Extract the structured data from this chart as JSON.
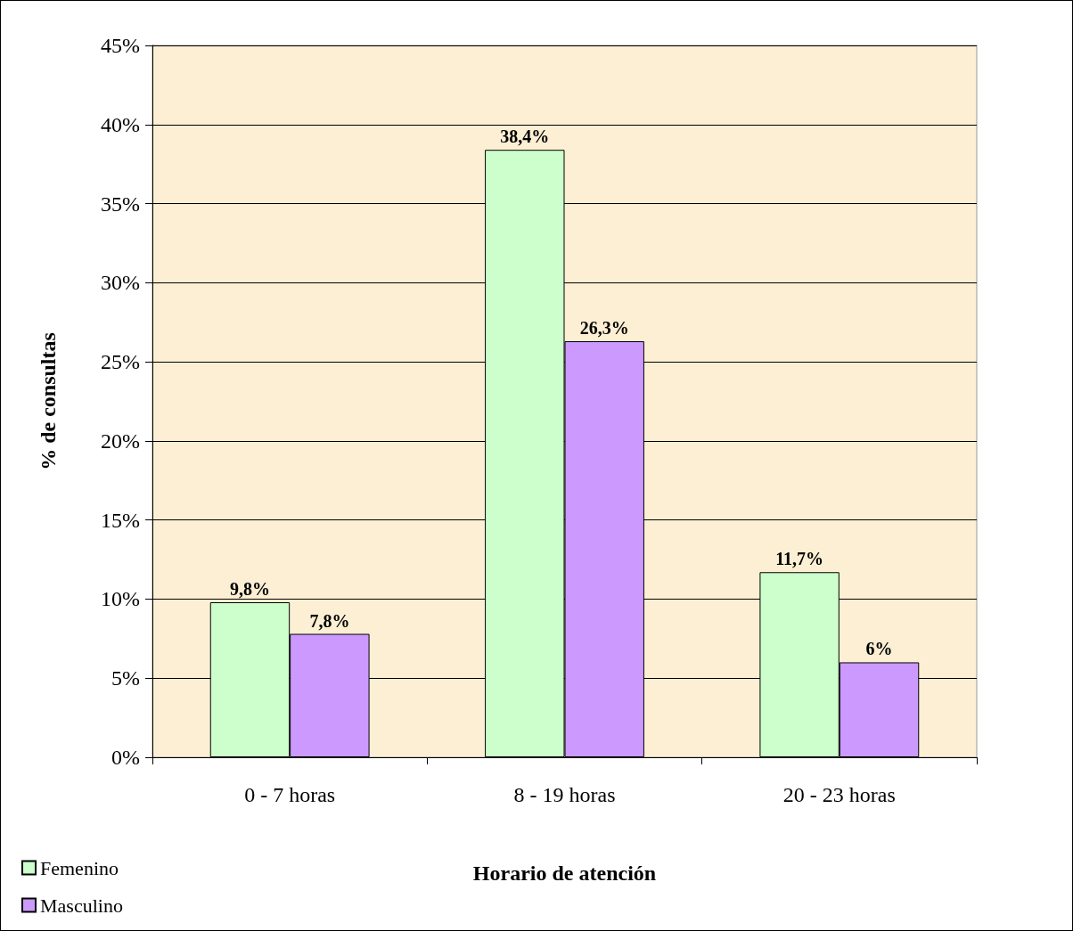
{
  "chart_data": {
    "type": "bar",
    "xlabel": "Horario de atención",
    "ylabel": "% de consultas",
    "categories": [
      "0 - 7 horas",
      "8 - 19 horas",
      "20 - 23 horas"
    ],
    "series": [
      {
        "name": "Femenino",
        "color": "#ccffcc",
        "values": [
          9.8,
          38.4,
          11.7
        ],
        "value_labels": [
          "9,8%",
          "38,4%",
          "11,7%"
        ]
      },
      {
        "name": "Masculino",
        "color": "#cc99ff",
        "values": [
          7.8,
          26.3,
          6
        ],
        "value_labels": [
          "7,8%",
          "26,3%",
          "6%"
        ]
      }
    ],
    "ylim": [
      0,
      45
    ],
    "yticks": [
      {
        "value": 0,
        "label": "0%"
      },
      {
        "value": 5,
        "label": "5%"
      },
      {
        "value": 10,
        "label": "10%"
      },
      {
        "value": 15,
        "label": "15%"
      },
      {
        "value": 20,
        "label": "20%"
      },
      {
        "value": 25,
        "label": "25%"
      },
      {
        "value": 30,
        "label": "30%"
      },
      {
        "value": 35,
        "label": "35%"
      },
      {
        "value": 40,
        "label": "40%"
      },
      {
        "value": 45,
        "label": "45%"
      }
    ],
    "grid": "y",
    "legend": "bottom left"
  }
}
